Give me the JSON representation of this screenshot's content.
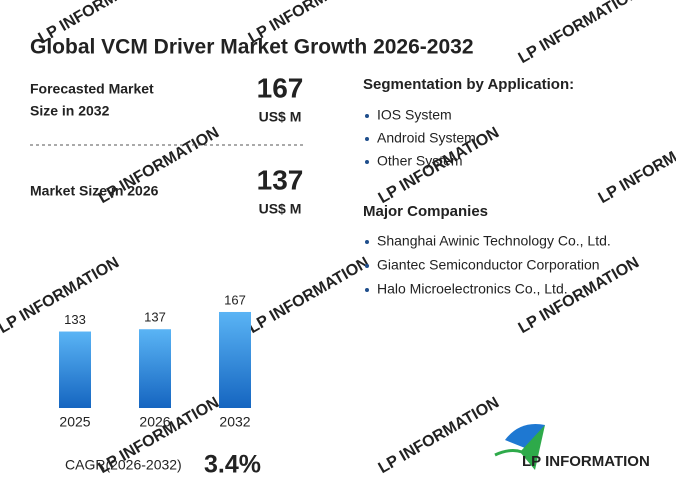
{
  "header": {
    "title": "Global VCM Driver Market Growth 2026-2032"
  },
  "kpis": [
    {
      "label_lines": [
        "Forecasted Market",
        "Size in 2032"
      ],
      "value": "167",
      "unit": "US$ M"
    },
    {
      "label_lines": [
        "Market Size in 2026"
      ],
      "value": "137",
      "unit": "US$ M"
    }
  ],
  "segmentation": {
    "title": "Segmentation by Application:",
    "items": [
      "IOS System",
      "Android System",
      "Other System"
    ]
  },
  "companies": {
    "title": "Major Companies",
    "items": [
      "Shanghai Awinic Technology Co., Ltd.",
      "Giantec Semiconductor Corporation",
      "Halo Microelectronics Co., Ltd."
    ]
  },
  "cagr": {
    "label": "CAGR(2026-2032)",
    "value": "3.4%"
  },
  "brand": {
    "name": "LP INFORMATION"
  },
  "chart_data": {
    "type": "bar",
    "categories": [
      "2025",
      "2026",
      "2032"
    ],
    "values": [
      133,
      137,
      167
    ],
    "color": "#1e78d2"
  }
}
